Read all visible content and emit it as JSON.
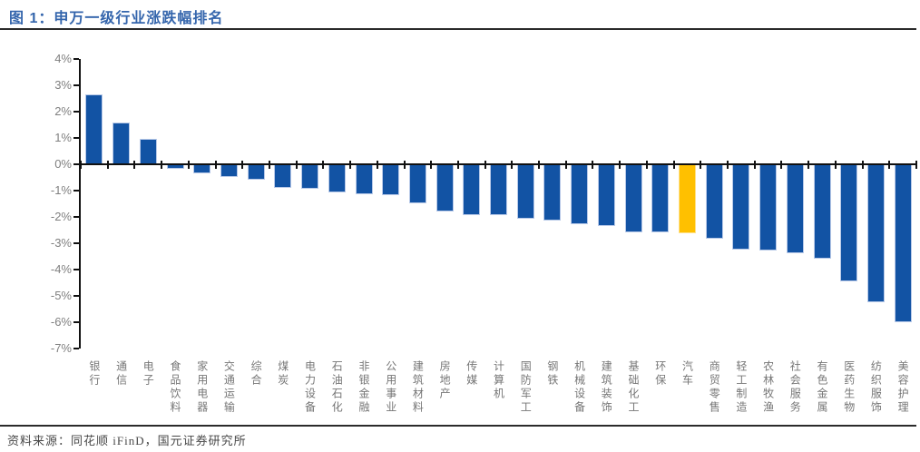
{
  "figure": {
    "title": "图 1：申万一级行业涨跌幅排名",
    "source": "资料来源：同花顺 iFinD，国元证券研究所"
  },
  "colors": {
    "bar": "#1253a4",
    "bar_edge": "#b8c9e8",
    "highlight": "#ffc000",
    "highlight_edge": "#ffe18a",
    "title": "#3465ac",
    "axis": "#111111",
    "tick_label": "#7f7f7f",
    "rule": "#2b2b2b"
  },
  "chart_data": {
    "type": "bar",
    "title": "申万一级行业涨跌幅排名",
    "ylim": [
      -7,
      4
    ],
    "grid": false,
    "legend": "none",
    "ytick_labels": [
      "4%",
      "3%",
      "2%",
      "1%",
      "0%",
      "-1%",
      "-2%",
      "-3%",
      "-4%",
      "-5%",
      "-6%",
      "-7%"
    ],
    "categories": [
      "银行",
      "通信",
      "电子",
      "食品饮料",
      "家用电器",
      "交通运输",
      "综合",
      "煤炭",
      "电力设备",
      "石油石化",
      "非银金融",
      "公用事业",
      "建筑材料",
      "房地产",
      "传媒",
      "计算机",
      "国防军工",
      "钢铁",
      "机械设备",
      "建筑装饰",
      "基础化工",
      "环保",
      "汽车",
      "商贸零售",
      "轻工制造",
      "农林牧渔",
      "社会服务",
      "有色金属",
      "医药生物",
      "纺织服饰",
      "美容护理"
    ],
    "values": [
      2.65,
      1.6,
      0.95,
      -0.15,
      -0.3,
      -0.45,
      -0.55,
      -0.85,
      -0.9,
      -1.05,
      -1.1,
      -1.15,
      -1.45,
      -1.75,
      -1.9,
      -1.9,
      -2.05,
      -2.1,
      -2.25,
      -2.3,
      -2.55,
      -2.55,
      -2.6,
      -2.8,
      -3.2,
      -3.25,
      -3.35,
      -3.55,
      -4.4,
      -5.2,
      -5.95
    ],
    "unit": "%",
    "highlight_index": 22,
    "highlight_category": "汽车"
  }
}
